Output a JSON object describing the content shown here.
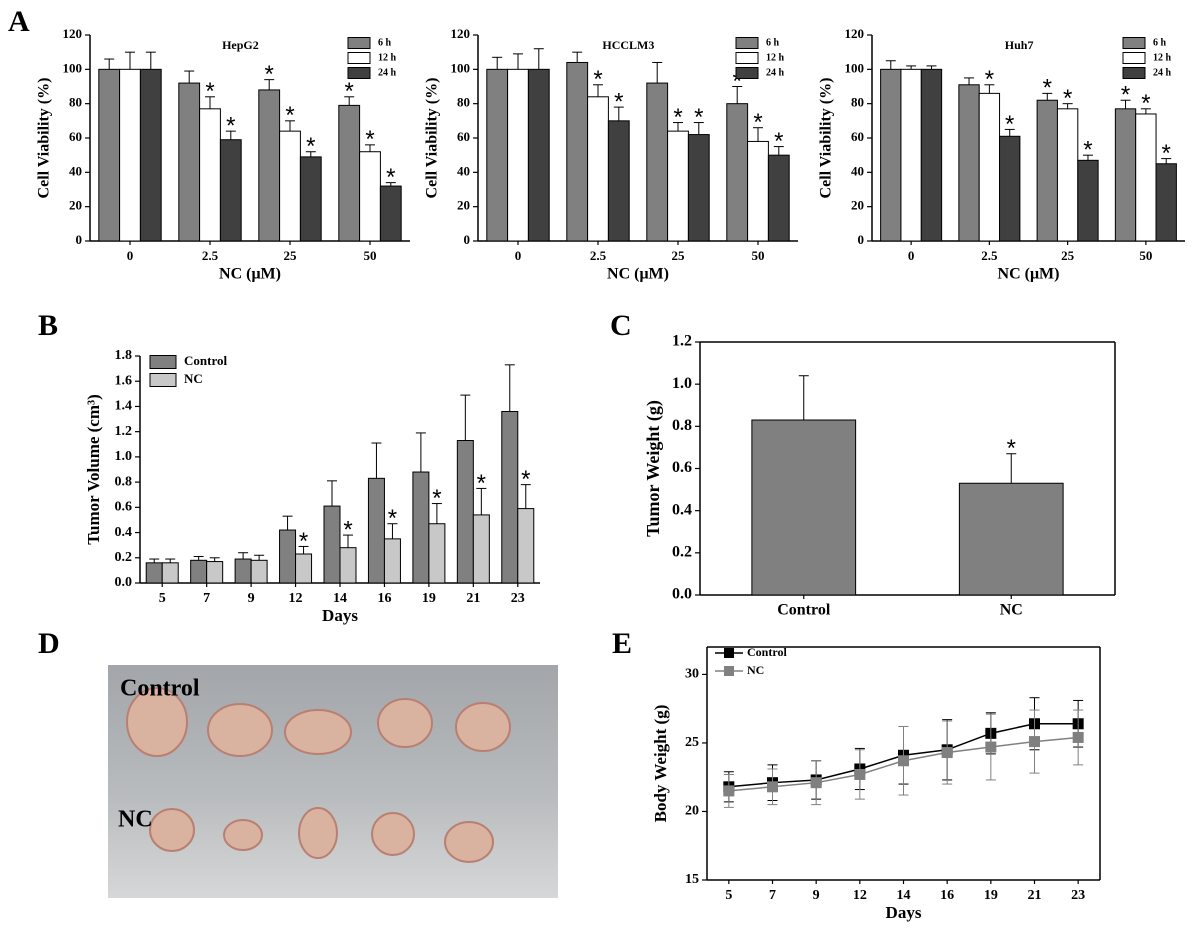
{
  "panel_labels": [
    "A",
    "B",
    "C",
    "D",
    "E"
  ],
  "photo": {
    "labels": [
      "Control",
      "NC"
    ]
  },
  "chart_data": [
    {
      "type": "bar",
      "title": "HepG2",
      "xlabel": "NC (μM)",
      "ylabel": "Cell Viability (%)",
      "categories": [
        "0",
        "2.5",
        "25",
        "50"
      ],
      "ylim": [
        0,
        120
      ],
      "yticks": [
        0,
        20,
        40,
        60,
        80,
        100,
        120
      ],
      "legend": "upper right",
      "series": [
        {
          "name": "6 h",
          "color": "#808080",
          "values": [
            100,
            92,
            88,
            79
          ],
          "errors": [
            6,
            7,
            6,
            5
          ],
          "annotations": [
            null,
            null,
            "*",
            "*"
          ]
        },
        {
          "name": "12 h",
          "color": "#ffffff",
          "values": [
            100,
            77,
            64,
            52
          ],
          "errors": [
            10,
            7,
            6,
            4
          ],
          "annotations": [
            null,
            "*",
            "*",
            "*"
          ]
        },
        {
          "name": "24 h",
          "color": "#404040",
          "values": [
            100,
            59,
            49,
            32
          ],
          "errors": [
            10,
            5,
            3,
            2
          ],
          "annotations": [
            null,
            "*",
            "*",
            "*"
          ]
        }
      ]
    },
    {
      "type": "bar",
      "title": "HCCLM3",
      "xlabel": "NC (μM)",
      "ylabel": "Cell Viability (%)",
      "categories": [
        "0",
        "2.5",
        "25",
        "50"
      ],
      "ylim": [
        0,
        120
      ],
      "yticks": [
        0,
        20,
        40,
        60,
        80,
        100,
        120
      ],
      "legend": "upper right",
      "series": [
        {
          "name": "6 h",
          "color": "#808080",
          "values": [
            100,
            104,
            92,
            80
          ],
          "errors": [
            7,
            6,
            12,
            10
          ],
          "annotations": [
            null,
            null,
            null,
            "*"
          ]
        },
        {
          "name": "12 h",
          "color": "#ffffff",
          "values": [
            100,
            84,
            64,
            58
          ],
          "errors": [
            9,
            7,
            5,
            8
          ],
          "annotations": [
            null,
            "*",
            "*",
            "*"
          ]
        },
        {
          "name": "24 h",
          "color": "#404040",
          "values": [
            100,
            70,
            62,
            50
          ],
          "errors": [
            12,
            8,
            7,
            5
          ],
          "annotations": [
            null,
            "*",
            "*",
            "*"
          ]
        }
      ]
    },
    {
      "type": "bar",
      "title": "Huh7",
      "xlabel": "NC (μM)",
      "ylabel": "Cell Viability (%)",
      "categories": [
        "0",
        "2.5",
        "25",
        "50"
      ],
      "ylim": [
        0,
        120
      ],
      "yticks": [
        0,
        20,
        40,
        60,
        80,
        100,
        120
      ],
      "legend": "upper right",
      "series": [
        {
          "name": "6 h",
          "color": "#808080",
          "values": [
            100,
            91,
            82,
            77
          ],
          "errors": [
            5,
            4,
            4,
            5
          ],
          "annotations": [
            null,
            null,
            "*",
            "*"
          ]
        },
        {
          "name": "12 h",
          "color": "#ffffff",
          "values": [
            100,
            86,
            77,
            74
          ],
          "errors": [
            2,
            5,
            3,
            3
          ],
          "annotations": [
            null,
            "*",
            "*",
            "*"
          ]
        },
        {
          "name": "24 h",
          "color": "#404040",
          "values": [
            100,
            61,
            47,
            45
          ],
          "errors": [
            2,
            4,
            3,
            3
          ],
          "annotations": [
            null,
            "*",
            "*",
            "*"
          ]
        }
      ]
    },
    {
      "type": "bar",
      "xlabel": "Days",
      "ylabel": "Tumor Volume (cm³)",
      "categories": [
        "5",
        "7",
        "9",
        "12",
        "14",
        "16",
        "19",
        "21",
        "23"
      ],
      "ylim": [
        0,
        1.8
      ],
      "yticks": [
        {
          "value": 0,
          "label": "0.0"
        },
        0.2,
        0.4,
        0.6,
        0.8,
        {
          "value": 1,
          "label": "1.0"
        },
        1.2,
        1.4,
        1.6,
        1.8
      ],
      "legend": "upper left",
      "series": [
        {
          "name": "Control",
          "color": "#808080",
          "values": [
            0.16,
            0.18,
            0.19,
            0.42,
            0.61,
            0.83,
            0.88,
            1.13,
            1.36
          ],
          "errors": [
            0.03,
            0.03,
            0.05,
            0.11,
            0.2,
            0.28,
            0.31,
            0.36,
            0.37
          ]
        },
        {
          "name": "NC",
          "color": "#c8c8c8",
          "values": [
            0.16,
            0.17,
            0.18,
            0.23,
            0.28,
            0.35,
            0.47,
            0.54,
            0.59
          ],
          "errors": [
            0.03,
            0.03,
            0.04,
            0.06,
            0.1,
            0.12,
            0.16,
            0.21,
            0.19
          ],
          "annotations": [
            null,
            null,
            null,
            "*",
            "*",
            "*",
            "*",
            "*",
            "*"
          ]
        }
      ]
    },
    {
      "type": "bar",
      "ylabel": "Tumor Weight (g)",
      "categories": [
        "Control",
        "NC"
      ],
      "ylim": [
        0,
        1.2
      ],
      "yticks": [
        {
          "value": 0,
          "label": "0.0"
        },
        0.2,
        0.4,
        0.6,
        0.8,
        {
          "value": 1,
          "label": "1.0"
        },
        1.2
      ],
      "series": [
        {
          "color": "#808080",
          "values": [
            0.83,
            0.53
          ],
          "errors": [
            0.21,
            0.14
          ],
          "annotations": [
            null,
            "*"
          ]
        }
      ]
    },
    {
      "type": "line",
      "xlabel": "Days",
      "ylabel": "Body Weight (g)",
      "categories": [
        "5",
        "7",
        "9",
        "12",
        "14",
        "16",
        "19",
        "21",
        "23"
      ],
      "ylim": [
        15,
        32
      ],
      "yticks": [
        15,
        20,
        25,
        30
      ],
      "legend": "upper left",
      "series": [
        {
          "name": "Control",
          "color": "#000000",
          "values": [
            21.8,
            22.1,
            22.3,
            23.1,
            24.1,
            24.5,
            25.7,
            26.4,
            26.4
          ],
          "errors": [
            1.1,
            1.3,
            1.4,
            1.5,
            2.1,
            2.2,
            1.5,
            1.9,
            1.7
          ]
        },
        {
          "name": "NC",
          "color": "#808080",
          "values": [
            21.5,
            21.8,
            22.1,
            22.7,
            23.7,
            24.3,
            24.7,
            25.1,
            25.4
          ],
          "errors": [
            1.2,
            1.3,
            1.6,
            1.8,
            2.5,
            2.3,
            2.4,
            2.3,
            2.0
          ]
        }
      ]
    }
  ]
}
